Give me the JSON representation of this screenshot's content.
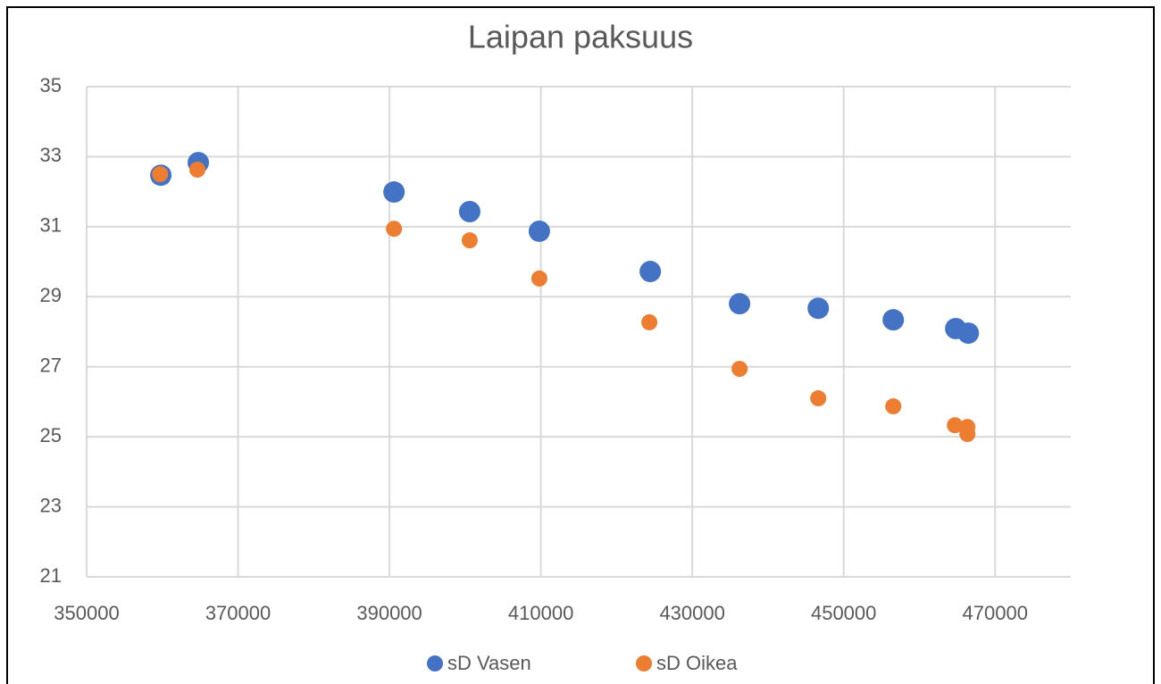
{
  "chart_data": {
    "type": "scatter",
    "title": "Laipan paksuus",
    "series": [
      {
        "name": "sD Vasen",
        "color": "#4472c4",
        "x": [
          359800,
          364750,
          390600,
          400600,
          409800,
          424450,
          436250,
          446640,
          456550,
          464800,
          466460
        ],
        "values": [
          32.47,
          32.83,
          31.99,
          31.43,
          30.87,
          29.72,
          28.8,
          28.67,
          28.34,
          28.09,
          27.96
        ]
      },
      {
        "name": "sD Oikea",
        "color": "#ed7d31",
        "x": [
          359700,
          364630,
          390600,
          400600,
          409800,
          424330,
          436250,
          446640,
          456550,
          464690,
          466340,
          466340
        ],
        "values": [
          32.5,
          32.63,
          30.94,
          30.61,
          29.52,
          28.27,
          26.94,
          26.1,
          25.87,
          25.33,
          25.28,
          25.08
        ]
      }
    ],
    "xlim": [
      350000,
      480000
    ],
    "xticks": [
      350000,
      370000,
      390000,
      410000,
      430000,
      450000,
      470000
    ],
    "ylim": [
      21,
      35
    ],
    "yticks": [
      21,
      23,
      25,
      27,
      29,
      31,
      33,
      35
    ],
    "grid": true,
    "legend": "bottom"
  }
}
